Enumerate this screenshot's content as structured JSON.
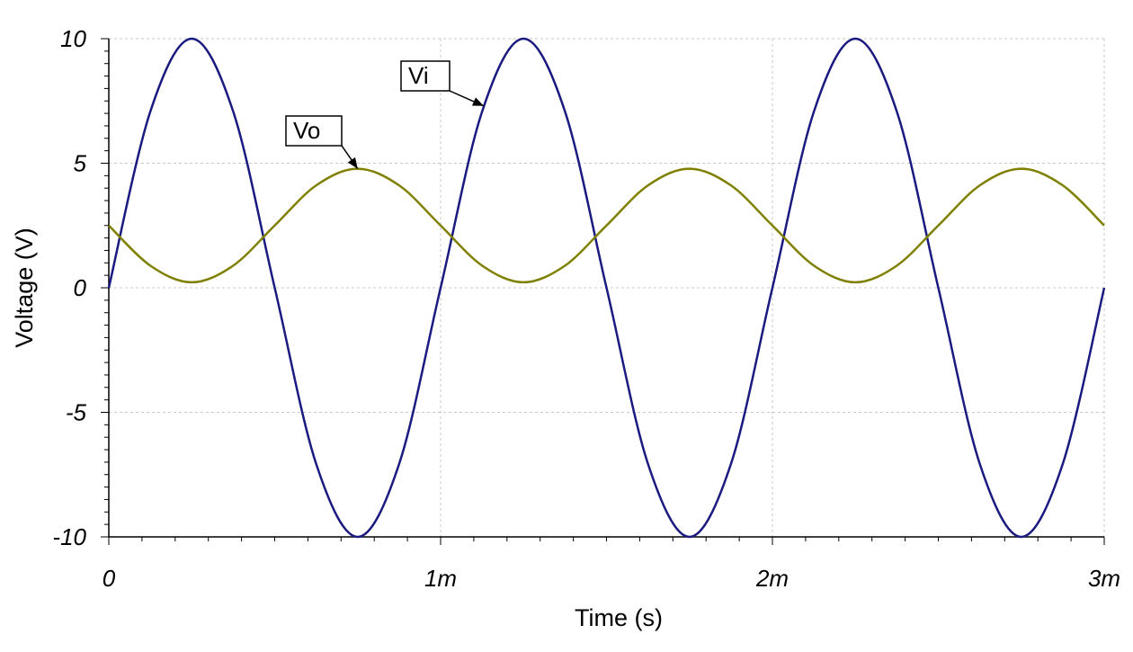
{
  "chart_data": {
    "type": "line",
    "title": "",
    "xlabel": "Time (s)",
    "ylabel": "Voltage (V)",
    "xlim": [
      0,
      0.003
    ],
    "ylim": [
      -10,
      10
    ],
    "x_ticks": [
      {
        "value": 0,
        "label": "0"
      },
      {
        "value": 0.001,
        "label": "1m"
      },
      {
        "value": 0.002,
        "label": "2m"
      },
      {
        "value": 0.003,
        "label": "3m"
      }
    ],
    "y_ticks": [
      {
        "value": 10,
        "label": "10"
      },
      {
        "value": 5,
        "label": "5"
      },
      {
        "value": 0,
        "label": "0"
      },
      {
        "value": -5,
        "label": "-5"
      },
      {
        "value": -10,
        "label": "-10"
      }
    ],
    "grid": true,
    "series": [
      {
        "name": "Vi",
        "color": "#1a1a80",
        "x": [
          0,
          0.000125,
          0.00025,
          0.000375,
          0.0005,
          0.000625,
          0.00075,
          0.000875,
          0.001,
          0.001125,
          0.00125,
          0.001375,
          0.0015,
          0.001625,
          0.00175,
          0.001875,
          0.002,
          0.002125,
          0.00225,
          0.002375,
          0.0025,
          0.002625,
          0.00275,
          0.002875,
          0.003
        ],
        "y": [
          0,
          7.07,
          10,
          7.07,
          0,
          -7.07,
          -10,
          -7.07,
          0,
          7.07,
          10,
          7.07,
          0,
          -7.07,
          -10,
          -7.07,
          0,
          7.07,
          10,
          7.07,
          0,
          -7.07,
          -10,
          -7.07,
          0
        ]
      },
      {
        "name": "Vo",
        "color": "#808000",
        "x": [
          0,
          0.000125,
          0.00025,
          0.000375,
          0.0005,
          0.000625,
          0.00075,
          0.000875,
          0.001,
          0.001125,
          0.00125,
          0.001375,
          0.0015,
          0.001625,
          0.00175,
          0.001875,
          0.002,
          0.002125,
          0.00225,
          0.002375,
          0.0025,
          0.002625,
          0.00275,
          0.002875,
          0.003
        ],
        "y": [
          2.5,
          0.89,
          0.22,
          0.89,
          2.5,
          4.11,
          4.78,
          4.11,
          2.5,
          0.89,
          0.22,
          0.89,
          2.5,
          4.11,
          4.78,
          4.11,
          2.5,
          0.89,
          0.22,
          0.89,
          2.5,
          4.11,
          4.78,
          4.11,
          2.5
        ]
      }
    ],
    "annotations": [
      {
        "text": "Vi",
        "series": "Vi",
        "target": [
          0.00113,
          7.3
        ]
      },
      {
        "text": "Vo",
        "series": "Vo",
        "target": [
          0.00075,
          4.78
        ]
      }
    ]
  }
}
